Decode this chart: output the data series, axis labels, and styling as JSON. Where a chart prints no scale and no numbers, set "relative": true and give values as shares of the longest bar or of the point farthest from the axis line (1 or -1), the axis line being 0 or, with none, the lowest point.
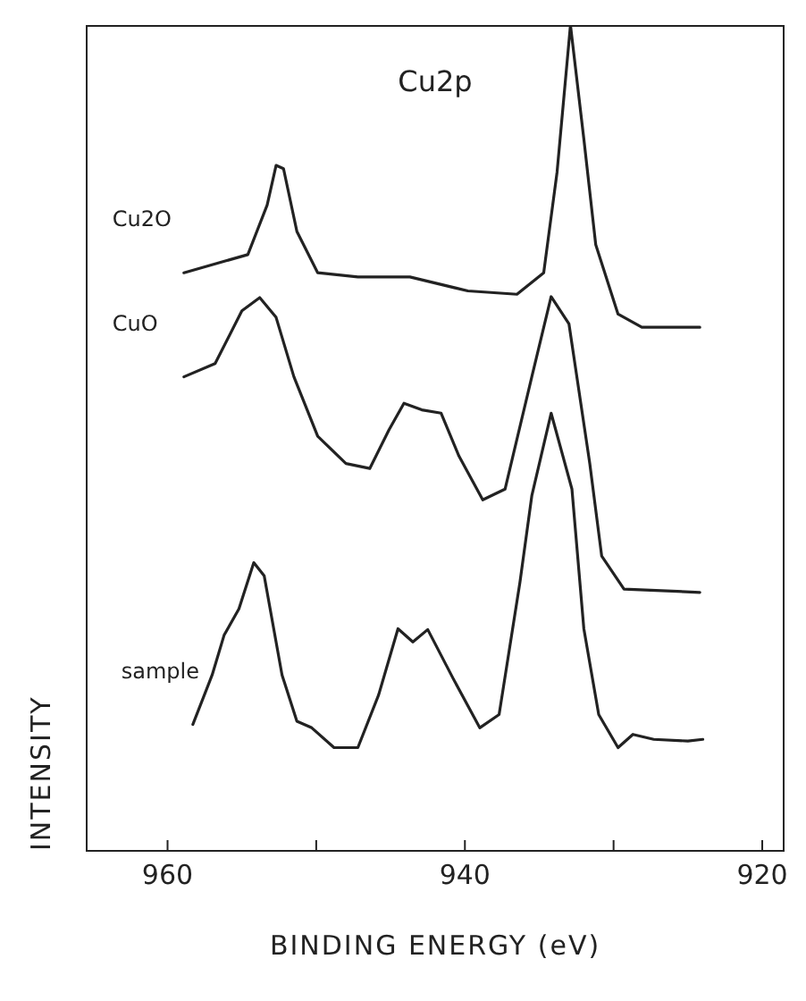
{
  "chart_data": {
    "type": "line",
    "title": "Cu2p",
    "xlabel": "BINDING ENERGY (eV)",
    "ylabel": "INTENSITY",
    "relative": true,
    "legend": false,
    "marker": "none",
    "line_style": "solid",
    "grid": false,
    "xlim": [
      965.5,
      918.5
    ],
    "xticks": [
      960,
      {
        "value": 950,
        "label": null
      },
      940,
      {
        "value": 930,
        "label": null
      },
      920
    ],
    "series": [
      {
        "name": "Cu2O",
        "color": "#222222",
        "x": [
          958.9,
          954.6,
          953.3,
          952.7,
          952.2,
          951.3,
          949.9,
          947.2,
          943.7,
          939.8,
          936.5,
          934.7,
          933.8,
          932.9,
          932.0,
          931.2,
          929.7,
          928.1,
          924.2
        ],
        "values": [
          0.7,
          0.722,
          0.782,
          0.83,
          0.826,
          0.75,
          0.7,
          0.695,
          0.695,
          0.678,
          0.674,
          0.7,
          0.822,
          1.0,
          0.862,
          0.734,
          0.65,
          0.634,
          0.634
        ]
      },
      {
        "name": "CuO",
        "color": "#222222",
        "x": [
          958.9,
          956.8,
          955.0,
          953.8,
          952.7,
          951.5,
          949.9,
          948.0,
          946.4,
          945.1,
          944.1,
          942.9,
          941.6,
          940.4,
          938.8,
          937.3,
          935.5,
          934.2,
          933.0,
          931.6,
          930.8,
          929.3,
          924.2
        ],
        "values": [
          0.574,
          0.59,
          0.654,
          0.67,
          0.646,
          0.574,
          0.502,
          0.469,
          0.463,
          0.51,
          0.542,
          0.534,
          0.53,
          0.478,
          0.425,
          0.438,
          0.574,
          0.671,
          0.638,
          0.469,
          0.357,
          0.317,
          0.313
        ]
      },
      {
        "name": "sample",
        "color": "#222222",
        "x": [
          958.3,
          957.0,
          956.2,
          955.2,
          954.2,
          953.5,
          952.3,
          951.3,
          950.3,
          948.8,
          947.2,
          945.8,
          944.5,
          943.5,
          942.5,
          940.8,
          939.0,
          937.7,
          936.3,
          935.5,
          934.2,
          932.8,
          932.0,
          931.0,
          929.7,
          928.7,
          927.3,
          925.0,
          924.0
        ],
        "values": [
          0.153,
          0.213,
          0.261,
          0.293,
          0.349,
          0.333,
          0.213,
          0.157,
          0.149,
          0.125,
          0.125,
          0.189,
          0.269,
          0.253,
          0.268,
          0.209,
          0.149,
          0.165,
          0.325,
          0.43,
          0.53,
          0.438,
          0.269,
          0.165,
          0.125,
          0.141,
          0.135,
          0.133,
          0.135
        ]
      }
    ]
  }
}
